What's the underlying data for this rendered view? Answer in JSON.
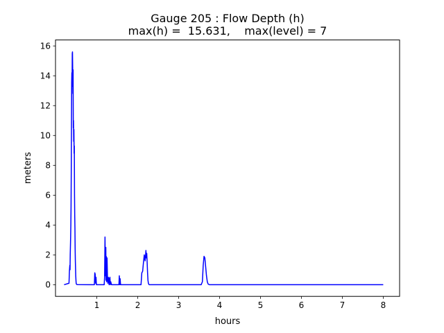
{
  "chart_data": {
    "type": "line",
    "title": "Gauge 205 : Flow Depth (h)",
    "subtitle": "max(h) =  15.631,    max(level) = 7",
    "xlabel": "hours",
    "ylabel": "meters",
    "xlim": [
      -0.01,
      8.4
    ],
    "ylim": [
      -0.78,
      16.4
    ],
    "xticks": [
      1,
      2,
      3,
      4,
      5,
      6,
      7,
      8
    ],
    "yticks": [
      0,
      2,
      4,
      6,
      8,
      10,
      12,
      14,
      16
    ],
    "grid": false,
    "legend": "none",
    "series": [
      {
        "color": "#0000ff",
        "x": [
          0.2,
          0.32,
          0.33,
          0.34,
          0.345,
          0.35,
          0.355,
          0.36,
          0.365,
          0.37,
          0.375,
          0.38,
          0.385,
          0.39,
          0.395,
          0.4,
          0.405,
          0.41,
          0.415,
          0.42,
          0.425,
          0.43,
          0.435,
          0.44,
          0.445,
          0.45,
          0.455,
          0.46,
          0.465,
          0.47,
          0.475,
          0.48,
          0.485,
          0.49,
          0.495,
          0.5,
          0.51,
          0.52,
          0.94,
          0.95,
          0.96,
          0.97,
          0.98,
          0.99,
          1.18,
          1.19,
          1.2,
          1.21,
          1.22,
          1.225,
          1.23,
          1.24,
          1.25,
          1.26,
          1.27,
          1.28,
          1.29,
          1.3,
          1.31,
          1.32,
          1.33,
          1.34,
          1.35,
          1.36,
          1.54,
          1.55,
          1.56,
          1.57,
          1.58,
          2.08,
          2.1,
          2.12,
          2.14,
          2.16,
          2.18,
          2.19,
          2.2,
          2.21,
          2.22,
          2.23,
          2.24,
          2.25,
          2.26,
          2.27,
          2.28,
          3.55,
          3.58,
          3.6,
          3.62,
          3.64,
          3.66,
          3.68,
          3.7,
          3.72,
          3.75,
          8.0
        ],
        "y": [
          0.0,
          0.1,
          0.9,
          1.3,
          1.0,
          2.0,
          2.6,
          3.2,
          4.0,
          5.2,
          7.5,
          10.5,
          13.5,
          14.2,
          13.3,
          15.5,
          15.6,
          14.5,
          12.8,
          14.4,
          10.5,
          11.0,
          9.6,
          10.4,
          8.8,
          9.3,
          6.0,
          4.6,
          3.8,
          2.4,
          1.6,
          1.1,
          0.6,
          0.3,
          0.1,
          0.05,
          0.02,
          0.01,
          0.0,
          0.8,
          0.7,
          0.1,
          0.5,
          0.0,
          0.0,
          0.5,
          3.2,
          0.6,
          2.5,
          0.3,
          1.9,
          0.2,
          1.8,
          0.5,
          0.1,
          0.5,
          0.4,
          0.0,
          0.4,
          0.5,
          0.0,
          0.2,
          0.1,
          0.0,
          0.0,
          0.6,
          0.0,
          0.4,
          0.0,
          0.0,
          0.8,
          0.9,
          1.5,
          2.0,
          1.6,
          1.9,
          2.3,
          1.8,
          2.1,
          1.5,
          0.8,
          0.3,
          0.1,
          0.03,
          0.0,
          0.0,
          0.2,
          1.3,
          1.9,
          1.8,
          1.2,
          0.6,
          0.2,
          0.05,
          0.0,
          0.0
        ]
      }
    ]
  }
}
